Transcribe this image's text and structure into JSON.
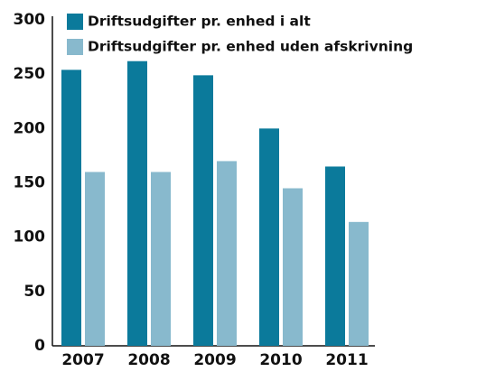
{
  "chart_data": {
    "type": "bar",
    "categories": [
      "2007",
      "2008",
      "2009",
      "2010",
      "2011"
    ],
    "series": [
      {
        "name": "Driftsudgifter pr. enhed i alt",
        "color": "#0b7a9b",
        "values": [
          254,
          262,
          249,
          200,
          165
        ]
      },
      {
        "name": "Driftsudgifter pr. enhed uden afskrivning",
        "color": "#88b9cd",
        "values": [
          160,
          160,
          170,
          145,
          114
        ]
      }
    ],
    "ylim": [
      0,
      300
    ],
    "yticks": [
      0,
      50,
      100,
      150,
      200,
      250,
      300
    ],
    "grid": false,
    "legend": "top"
  }
}
